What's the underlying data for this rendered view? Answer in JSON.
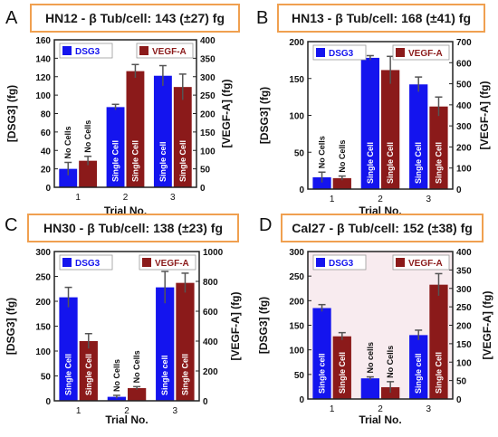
{
  "chart_data": [
    {
      "type": "bar",
      "panel_letter": "A",
      "title": "HN12 - β Tub/cell: 143 (±27) fg",
      "xlabel": "Trial No.",
      "ylabel": "[DSG3] (fg)",
      "y2label": "[VEGF-A] (fg)",
      "categories": [
        "1",
        "2",
        "3"
      ],
      "ylim": [
        0,
        160
      ],
      "y2lim": [
        0,
        400
      ],
      "yticks": [
        0,
        20,
        40,
        60,
        80,
        100,
        120,
        140,
        160
      ],
      "y2ticks": [
        0,
        50,
        100,
        150,
        200,
        250,
        300,
        350,
        400
      ],
      "legend_placement": "top",
      "series": [
        {
          "name": "DSG3",
          "axis": "left",
          "color": "#1414ee",
          "values": [
            20,
            87,
            121
          ],
          "errors": [
            7,
            3,
            11
          ]
        },
        {
          "name": "VEGF-A",
          "axis": "right",
          "color": "#8b1a1a",
          "values": [
            72,
            315,
            272
          ],
          "errors": [
            12,
            18,
            35
          ]
        }
      ],
      "bar_labels": [
        [
          "No Cells",
          "Single Cell",
          "Single cell"
        ],
        [
          "No Cells",
          "Single Cell",
          "Single Cell"
        ]
      ]
    },
    {
      "type": "bar",
      "panel_letter": "B",
      "title": "HN13 - β Tub/cell: 168 (±41) fg",
      "xlabel": "Trial No.",
      "ylabel": "[DSG3] (fg)",
      "y2label": "[VEGF-A] (fg)",
      "categories": [
        "1",
        "2",
        "3"
      ],
      "ylim": [
        0,
        200
      ],
      "y2lim": [
        0,
        700
      ],
      "yticks": [
        0,
        50,
        100,
        150,
        200
      ],
      "y2ticks": [
        0,
        100,
        200,
        300,
        400,
        500,
        600,
        700
      ],
      "legend_placement": "top",
      "series": [
        {
          "name": "DSG3",
          "axis": "left",
          "color": "#1414ee",
          "values": [
            16,
            178,
            142
          ],
          "errors": [
            7,
            3,
            10
          ]
        },
        {
          "name": "VEGF-A",
          "axis": "right",
          "color": "#8b1a1a",
          "values": [
            52,
            565,
            392
          ],
          "errors": [
            10,
            65,
            45
          ]
        }
      ],
      "bar_labels": [
        [
          "No Cells",
          "Single Cell",
          "Single Cell"
        ],
        [
          "No Cells",
          "Single Cell",
          "Single Cell"
        ]
      ]
    },
    {
      "type": "bar",
      "panel_letter": "C",
      "title": "HN30 - β Tub/cell: 138 (±23) fg",
      "xlabel": "Trial No.",
      "ylabel": "[DSG3] (fg)",
      "y2label": "[VEGF-A] (fg)",
      "categories": [
        "1",
        "2",
        "3"
      ],
      "ylim": [
        0,
        300
      ],
      "y2lim": [
        0,
        1000
      ],
      "yticks": [
        0,
        50,
        100,
        150,
        200,
        250,
        300
      ],
      "y2ticks": [
        0,
        200,
        400,
        600,
        800,
        1000
      ],
      "legend_placement": "top",
      "series": [
        {
          "name": "DSG3",
          "axis": "left",
          "color": "#1414ee",
          "values": [
            208,
            8,
            228
          ],
          "errors": [
            20,
            3,
            32
          ]
        },
        {
          "name": "VEGF-A",
          "axis": "right",
          "color": "#8b1a1a",
          "values": [
            400,
            85,
            790
          ],
          "errors": [
            50,
            10,
            65
          ]
        }
      ],
      "bar_labels": [
        [
          "Single Cell",
          "No Cells",
          "Single cell"
        ],
        [
          "Single Cell",
          "No Cells",
          "Single Cell"
        ]
      ]
    },
    {
      "type": "bar",
      "panel_letter": "D",
      "title": "Cal27 - β Tub/cell: 152 (±38) fg",
      "xlabel": "Trial No.",
      "ylabel": "[DSG3] (fg)",
      "y2label": "[VEGF-A] (fg)",
      "categories": [
        "1",
        "2",
        "3"
      ],
      "ylim": [
        0,
        300
      ],
      "y2lim": [
        0,
        400
      ],
      "yticks": [
        0,
        50,
        100,
        150,
        200,
        250,
        300
      ],
      "y2ticks": [
        0,
        50,
        100,
        150,
        200,
        250,
        300,
        350,
        400
      ],
      "legend_placement": "top",
      "series": [
        {
          "name": "DSG3",
          "axis": "left",
          "color": "#1414ee",
          "values": [
            185,
            42,
            130
          ],
          "errors": [
            7,
            3,
            10
          ]
        },
        {
          "name": "VEGF-A",
          "axis": "right",
          "color": "#8b1a1a",
          "values": [
            170,
            32,
            310
          ],
          "errors": [
            10,
            15,
            30
          ]
        }
      ],
      "bar_labels": [
        [
          "Single cell",
          "No cells",
          "Single cell"
        ],
        [
          "Single Cell",
          "No Cells",
          "Single Cell"
        ]
      ]
    }
  ]
}
